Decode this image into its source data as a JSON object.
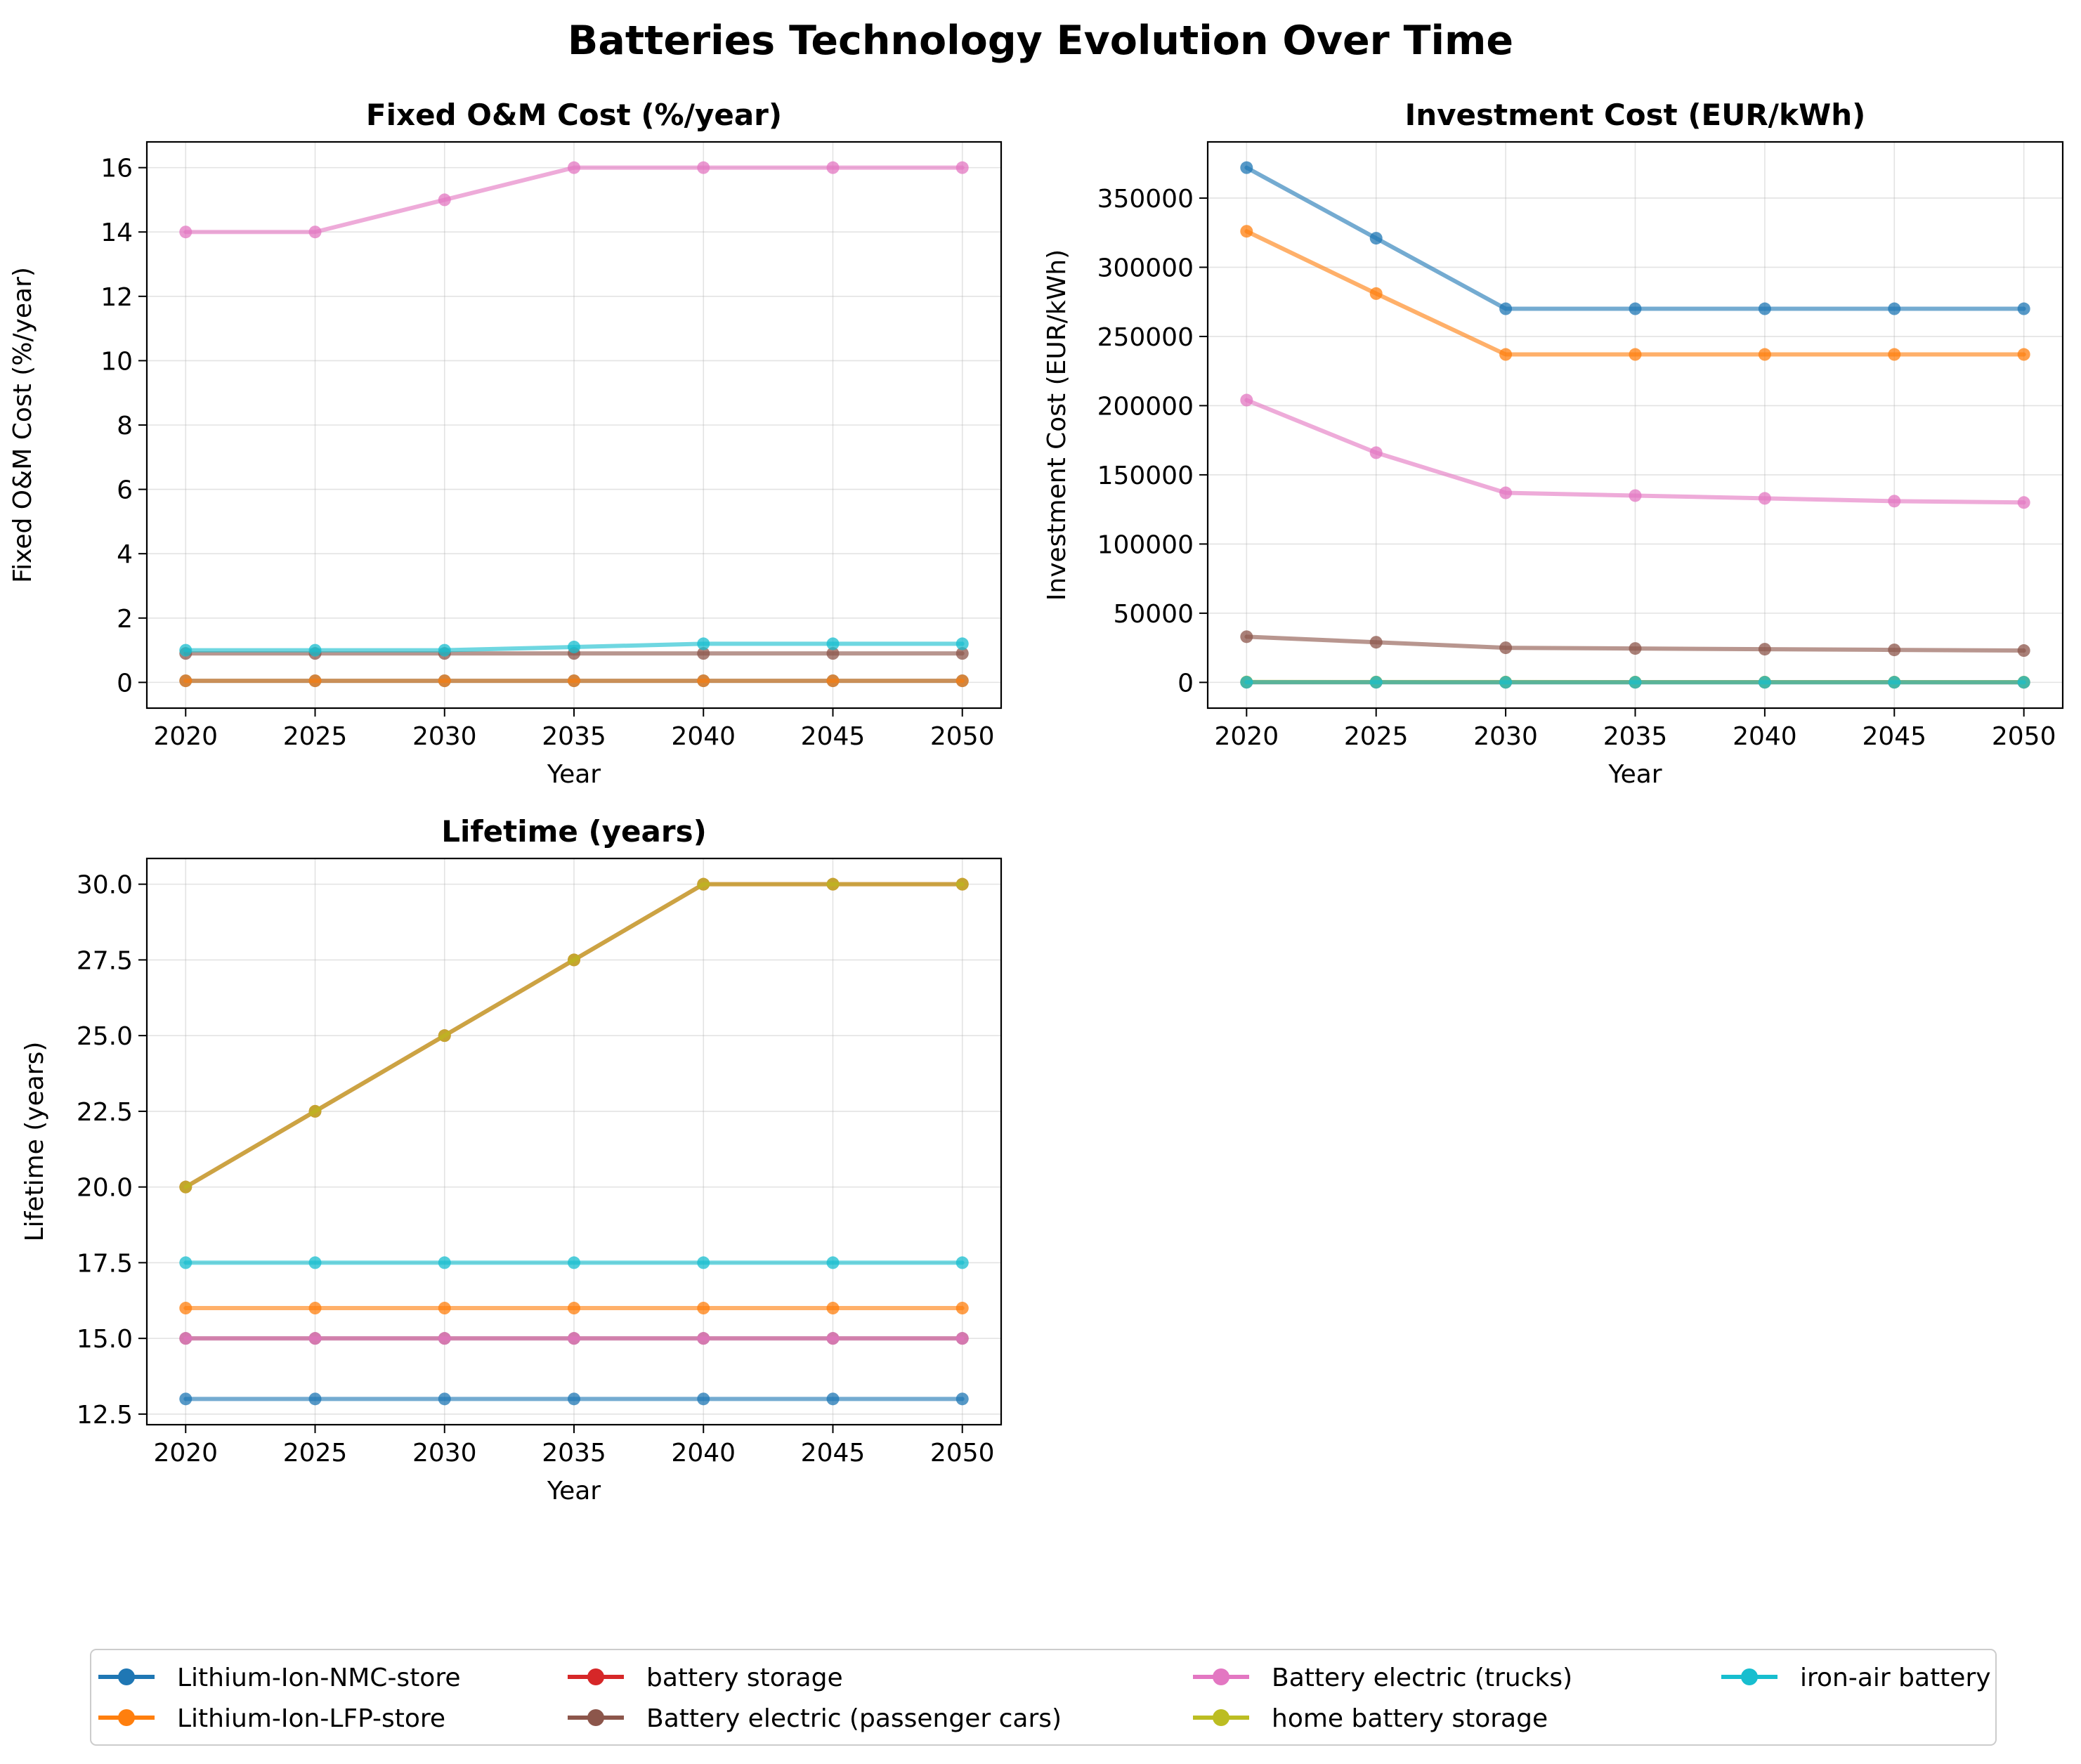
{
  "figure_title": "Batteries Technology Evolution Over Time",
  "colors": {
    "Lithium-Ion-NMC-store": "#1f77b4",
    "Lithium-Ion-LFP-store": "#ff7f0e",
    "battery storage": "#d62728",
    "Battery electric (passenger cars)": "#8c564b",
    "Battery electric (trucks)": "#e377c2",
    "home battery storage": "#bcbd22",
    "iron-air battery": "#17becf",
    "overlap_green": "#2ca02c"
  },
  "legend": {
    "placement": "bottom-center",
    "columns": 4,
    "entries": [
      "Lithium-Ion-NMC-store",
      "Lithium-Ion-LFP-store",
      "battery storage",
      "Battery electric (passenger cars)",
      "Battery electric (trucks)",
      "home battery storage",
      "iron-air battery"
    ]
  },
  "chart_data": [
    {
      "type": "line",
      "title": "Fixed O&M Cost (%/year)",
      "xlabel": "Year",
      "ylabel": "Fixed O&M Cost (%/year)",
      "x": [
        2020,
        2025,
        2030,
        2035,
        2040,
        2045,
        2050
      ],
      "xlim": [
        2018.5,
        2051.5
      ],
      "ylim": [
        -0.8,
        16.8
      ],
      "yticks": [
        0,
        2,
        4,
        6,
        8,
        10,
        12,
        14,
        16
      ],
      "ytick_labels": [
        "0",
        "2",
        "4",
        "6",
        "8",
        "10",
        "12",
        "14",
        "16"
      ],
      "grid": true,
      "series": [
        {
          "name": "Lithium-Ion-NMC-store",
          "values": [
            0.05,
            0.05,
            0.05,
            0.05,
            0.05,
            0.05,
            0.05
          ]
        },
        {
          "name": "Lithium-Ion-LFP-store",
          "values": [
            0.05,
            0.05,
            0.05,
            0.05,
            0.05,
            0.05,
            0.05
          ]
        },
        {
          "name": "Battery electric (passenger cars)",
          "values": [
            0.9,
            0.9,
            0.9,
            0.9,
            0.9,
            0.9,
            0.9
          ]
        },
        {
          "name": "Battery electric (trucks)",
          "values": [
            14,
            14,
            15,
            16,
            16,
            16,
            16
          ]
        },
        {
          "name": "iron-air battery",
          "values": [
            1.0,
            1.0,
            1.0,
            1.1,
            1.2,
            1.2,
            1.2
          ]
        }
      ]
    },
    {
      "type": "line",
      "title": "Investment Cost (EUR/kWh)",
      "xlabel": "Year",
      "ylabel": "Investment Cost (EUR/kWh)",
      "x": [
        2020,
        2025,
        2030,
        2035,
        2040,
        2045,
        2050
      ],
      "xlim": [
        2018.5,
        2051.5
      ],
      "ylim": [
        -18600,
        390600
      ],
      "yticks": [
        0,
        50000,
        100000,
        150000,
        200000,
        250000,
        300000,
        350000
      ],
      "ytick_labels": [
        "0",
        "50000",
        "100000",
        "150000",
        "200000",
        "250000",
        "300000",
        "350000"
      ],
      "grid": true,
      "series": [
        {
          "name": "Lithium-Ion-NMC-store",
          "values": [
            372000,
            321000,
            270000,
            270000,
            270000,
            270000,
            270000
          ]
        },
        {
          "name": "Lithium-Ion-LFP-store",
          "values": [
            326000,
            281000,
            237000,
            237000,
            237000,
            237000,
            237000
          ]
        },
        {
          "name": "Battery electric (trucks)",
          "values": [
            204000,
            166000,
            137000,
            135000,
            133000,
            131000,
            130000
          ]
        },
        {
          "name": "Battery electric (passenger cars)",
          "values": [
            33000,
            29000,
            25000,
            24500,
            24000,
            23500,
            23000
          ]
        },
        {
          "name": "battery storage",
          "values": [
            150,
            130,
            110,
            100,
            95,
            90,
            85
          ]
        },
        {
          "name": "home battery storage",
          "values": [
            300,
            260,
            220,
            200,
            190,
            180,
            170
          ]
        },
        {
          "name": "iron-air battery",
          "values": [
            100,
            90,
            80,
            75,
            70,
            65,
            60
          ]
        }
      ]
    },
    {
      "type": "line",
      "title": "Lifetime (years)",
      "xlabel": "Year",
      "ylabel": "Lifetime (years)",
      "x": [
        2020,
        2025,
        2030,
        2035,
        2040,
        2045,
        2050
      ],
      "xlim": [
        2018.5,
        2051.5
      ],
      "ylim": [
        12.15,
        30.85
      ],
      "yticks": [
        12.5,
        15.0,
        17.5,
        20.0,
        22.5,
        25.0,
        27.5,
        30.0
      ],
      "ytick_labels": [
        "12.5",
        "15.0",
        "17.5",
        "20.0",
        "22.5",
        "25.0",
        "27.5",
        "30.0"
      ],
      "grid": true,
      "series": [
        {
          "name": "Lithium-Ion-NMC-store",
          "values": [
            13,
            13,
            13,
            13,
            13,
            13,
            13
          ]
        },
        {
          "name": "Lithium-Ion-LFP-store",
          "values": [
            16,
            16,
            16,
            16,
            16,
            16,
            16
          ]
        },
        {
          "name": "Battery electric (passenger cars)",
          "values": [
            15,
            15,
            15,
            15,
            15,
            15,
            15
          ]
        },
        {
          "name": "Battery electric (trucks)",
          "values": [
            15,
            15,
            15,
            15,
            15,
            15,
            15
          ]
        },
        {
          "name": "iron-air battery",
          "values": [
            17.5,
            17.5,
            17.5,
            17.5,
            17.5,
            17.5,
            17.5
          ]
        },
        {
          "name": "battery storage",
          "values": [
            20,
            22.5,
            25,
            27.5,
            30,
            30,
            30
          ]
        },
        {
          "name": "home battery storage",
          "values": [
            20,
            22.5,
            25,
            27.5,
            30,
            30,
            30
          ]
        }
      ]
    }
  ]
}
